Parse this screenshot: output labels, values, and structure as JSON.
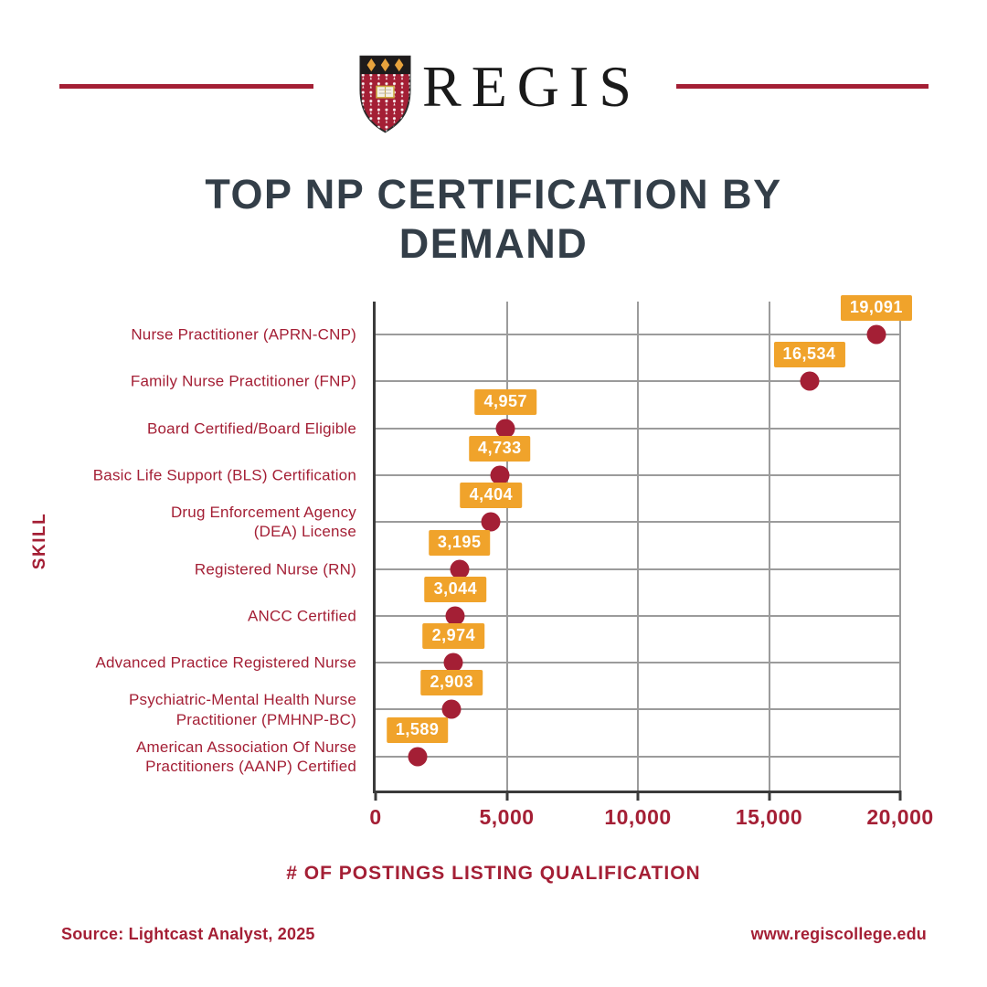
{
  "header": {
    "brand": "REGIS",
    "crest_icon": "regis-crest-shield-icon",
    "rule_color": "#A41F35"
  },
  "title": "TOP NP CERTIFICATION BY DEMAND",
  "chart_data": {
    "type": "scatter",
    "variant": "horizontal_dot_plot",
    "title": "TOP NP CERTIFICATION BY DEMAND",
    "xlabel": "# OF POSTINGS LISTING QUALIFICATION",
    "ylabel": "SKILL",
    "xlim": [
      0,
      20000
    ],
    "x_ticks": [
      0,
      5000,
      10000,
      15000,
      20000
    ],
    "x_tick_labels": [
      "0",
      "5,000",
      "10,000",
      "15,000",
      "20,000"
    ],
    "grid": true,
    "legend": false,
    "categories": [
      "Nurse Practitioner (APRN-CNP)",
      "Family Nurse Practitioner (FNP)",
      "Board Certified/Board Eligible",
      "Basic Life Support (BLS) Certification",
      "Drug Enforcement Agency\n(DEA) License",
      "Registered Nurse (RN)",
      "ANCC Certified",
      "Advanced Practice Registered Nurse",
      "Psychiatric-Mental Health Nurse\nPractitioner (PMHNP-BC)",
      "American Association Of Nurse\nPractitioners (AANP) Certified"
    ],
    "values": [
      19091,
      16534,
      4957,
      4733,
      4404,
      3195,
      3044,
      2974,
      2903,
      1589
    ],
    "value_labels": [
      "19,091",
      "16,534",
      "4,957",
      "4,733",
      "4,404",
      "3,195",
      "3,044",
      "2,974",
      "2,903",
      "1,589"
    ],
    "colors": {
      "dot": "#A41F35",
      "value_label_bg": "#F0A32B",
      "value_label_text": "#FFFFFF",
      "axis_text": "#A41F35",
      "grid_line": "#9B9B9B",
      "axis_line": "#3B3B3B",
      "title_text": "#333E48"
    }
  },
  "footer": {
    "source": "Source: Lightcast Analyst, 2025",
    "website": "www.regiscollege.edu"
  }
}
